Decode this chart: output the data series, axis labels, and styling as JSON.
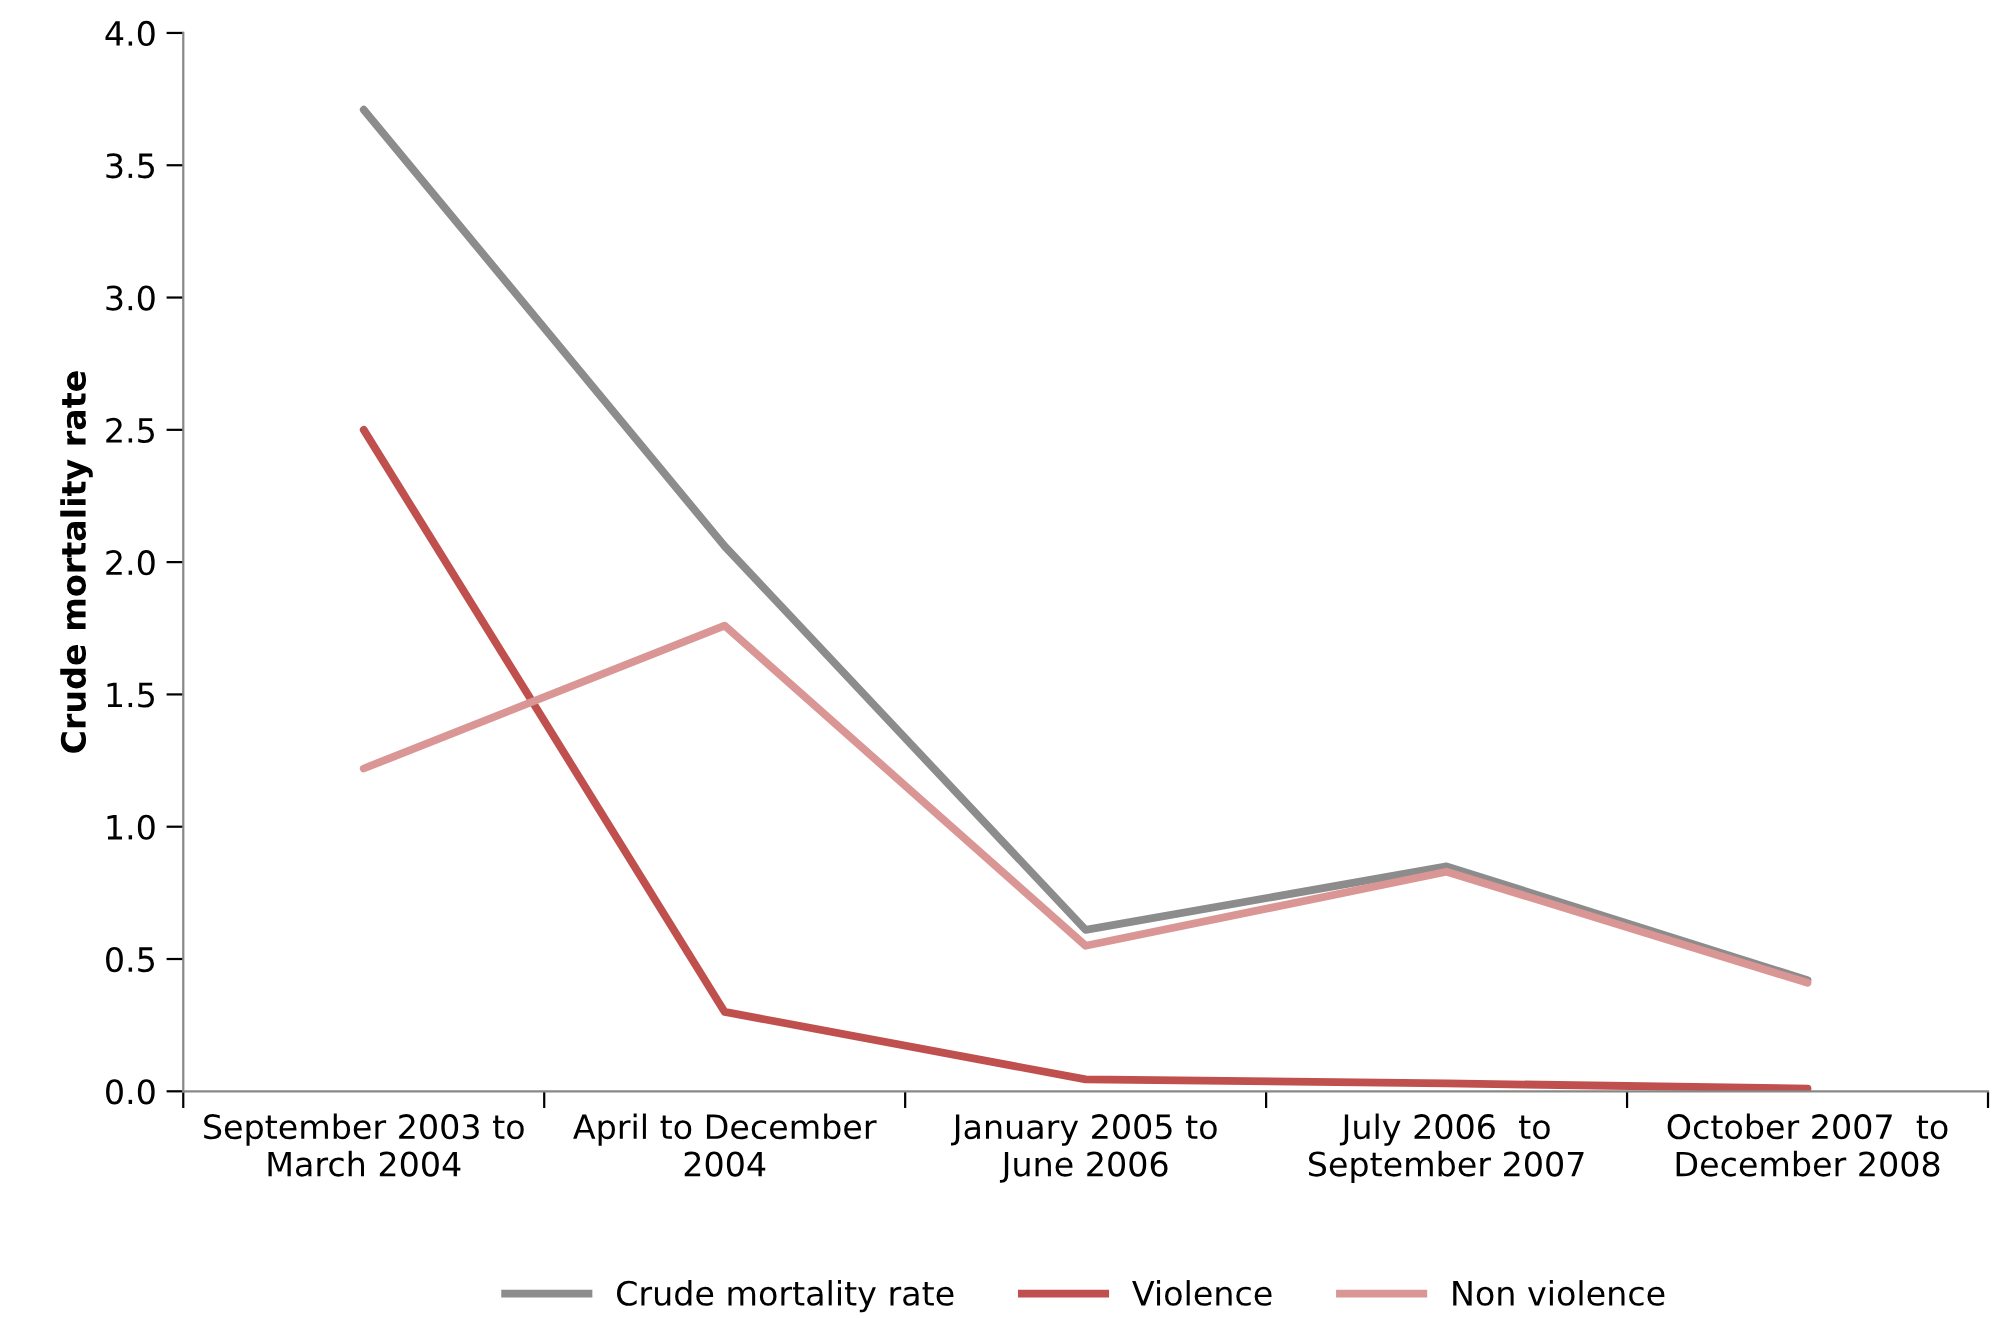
{
  "chart_data": {
    "type": "line",
    "ylabel": "Crude mortality rate",
    "categories": [
      "September 2003 to\nMarch 2004",
      "April to December\n2004",
      "January 2005 to\nJune 2006",
      "July 2006  to\nSeptember 2007",
      "October 2007  to\nDecember 2008"
    ],
    "series": [
      {
        "name": "Crude mortality rate",
        "color": "#8c8c8c",
        "values": [
          3.71,
          2.06,
          0.61,
          0.85,
          0.42
        ]
      },
      {
        "name": "Violence",
        "color": "#c0504d",
        "values": [
          2.5,
          0.3,
          0.045,
          0.03,
          0.01
        ]
      },
      {
        "name": "Non violence",
        "color": "#d99694",
        "values": [
          1.22,
          1.76,
          0.55,
          0.83,
          0.41
        ]
      }
    ],
    "ylim": [
      0,
      4
    ],
    "yticks": [
      {
        "value": 0,
        "label": "0.0"
      },
      {
        "value": 0.5,
        "label": "0.5"
      },
      {
        "value": 1,
        "label": "1.0"
      },
      {
        "value": 1.5,
        "label": "1.5"
      },
      {
        "value": 2,
        "label": "2.0"
      },
      {
        "value": 2.5,
        "label": "2.5"
      },
      {
        "value": 3,
        "label": "3.0"
      },
      {
        "value": 3.5,
        "label": "3.5"
      },
      {
        "value": 4,
        "label": "4.0"
      }
    ],
    "grid": false,
    "legend": "bottom",
    "marker": "none",
    "line_style": "solid"
  }
}
